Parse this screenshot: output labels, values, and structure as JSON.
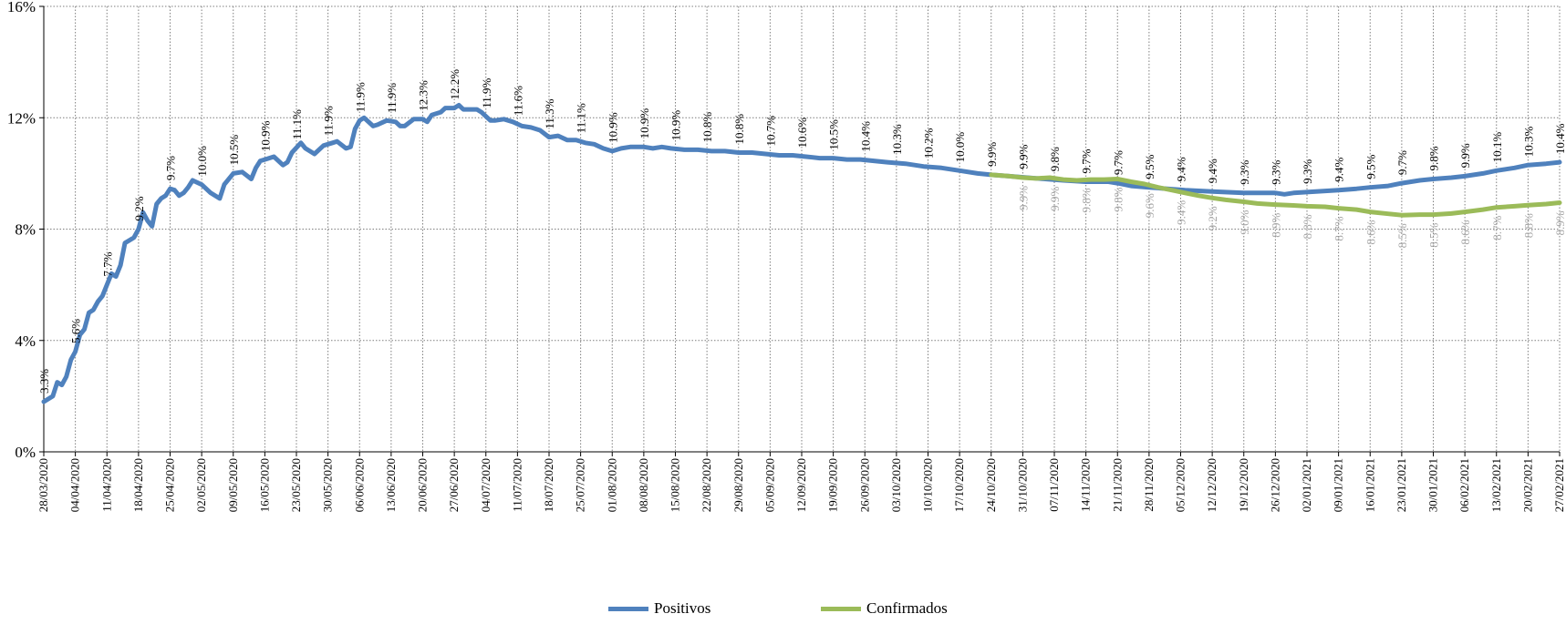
{
  "chart_data": {
    "type": "line",
    "title": "",
    "xlabel": "",
    "ylabel": "",
    "ylim": [
      0,
      16
    ],
    "y_ticks": [
      "0%",
      "4%",
      "8%",
      "12%",
      "16%"
    ],
    "grid": "dotted vertical and horizontal",
    "legend_position": "bottom-center",
    "x_start": "28/03/2020",
    "x_end": "27/02/2021",
    "x_tick_labels": [
      "28/03/2020",
      "04/04/2020",
      "11/04/2020",
      "18/04/2020",
      "25/04/2020",
      "02/05/2020",
      "09/05/2020",
      "16/05/2020",
      "23/05/2020",
      "30/05/2020",
      "06/06/2020",
      "13/06/2020",
      "20/06/2020",
      "27/06/2020",
      "04/07/2020",
      "11/07/2020",
      "18/07/2020",
      "25/07/2020",
      "01/08/2020",
      "08/08/2020",
      "15/08/2020",
      "22/08/2020",
      "29/08/2020",
      "05/09/2020",
      "12/09/2020",
      "19/09/2020",
      "26/09/2020",
      "03/10/2020",
      "10/10/2020",
      "17/10/2020",
      "24/10/2020",
      "31/10/2020",
      "07/11/2020",
      "14/11/2020",
      "21/11/2020",
      "28/11/2020",
      "05/12/2020",
      "12/12/2020",
      "19/12/2020",
      "26/12/2020",
      "02/01/2021",
      "09/01/2021",
      "16/01/2021",
      "23/01/2021",
      "30/01/2021",
      "06/02/2021",
      "13/02/2021",
      "20/02/2021",
      "27/02/2021"
    ],
    "series": [
      {
        "name": "Positivos",
        "color": "#4f81bd",
        "points": [
          [
            "28/03/2020",
            1.8
          ],
          [
            "30/03/2020",
            2.0
          ],
          [
            "31/03/2020",
            2.5
          ],
          [
            "01/04/2020",
            2.4
          ],
          [
            "02/04/2020",
            2.7
          ],
          [
            "03/04/2020",
            3.3
          ],
          [
            "04/04/2020",
            3.6
          ],
          [
            "05/04/2020",
            4.2
          ],
          [
            "06/04/2020",
            4.4
          ],
          [
            "07/04/2020",
            5.0
          ],
          [
            "08/04/2020",
            5.1
          ],
          [
            "09/04/2020",
            5.4
          ],
          [
            "10/04/2020",
            5.6
          ],
          [
            "11/04/2020",
            6.0
          ],
          [
            "12/04/2020",
            6.4
          ],
          [
            "13/04/2020",
            6.3
          ],
          [
            "14/04/2020",
            6.7
          ],
          [
            "15/04/2020",
            7.5
          ],
          [
            "16/04/2020",
            7.6
          ],
          [
            "17/04/2020",
            7.7
          ],
          [
            "18/04/2020",
            8.0
          ],
          [
            "19/04/2020",
            8.6
          ],
          [
            "20/04/2020",
            8.3
          ],
          [
            "21/04/2020",
            8.1
          ],
          [
            "22/04/2020",
            8.9
          ],
          [
            "23/04/2020",
            9.1
          ],
          [
            "24/04/2020",
            9.2
          ],
          [
            "25/04/2020",
            9.45
          ],
          [
            "26/04/2020",
            9.4
          ],
          [
            "27/04/2020",
            9.2
          ],
          [
            "28/04/2020",
            9.3
          ],
          [
            "29/04/2020",
            9.5
          ],
          [
            "30/04/2020",
            9.75
          ],
          [
            "02/05/2020",
            9.6
          ],
          [
            "04/05/2020",
            9.3
          ],
          [
            "06/05/2020",
            9.1
          ],
          [
            "07/05/2020",
            9.6
          ],
          [
            "09/05/2020",
            10.0
          ],
          [
            "11/05/2020",
            10.05
          ],
          [
            "13/05/2020",
            9.8
          ],
          [
            "14/05/2020",
            10.2
          ],
          [
            "15/05/2020",
            10.45
          ],
          [
            "16/05/2020",
            10.5
          ],
          [
            "18/05/2020",
            10.6
          ],
          [
            "20/05/2020",
            10.3
          ],
          [
            "21/05/2020",
            10.4
          ],
          [
            "22/05/2020",
            10.75
          ],
          [
            "24/05/2020",
            11.1
          ],
          [
            "25/05/2020",
            10.9
          ],
          [
            "27/05/2020",
            10.7
          ],
          [
            "29/05/2020",
            11.0
          ],
          [
            "31/05/2020",
            11.1
          ],
          [
            "01/06/2020",
            11.15
          ],
          [
            "03/06/2020",
            10.9
          ],
          [
            "04/06/2020",
            10.95
          ],
          [
            "05/06/2020",
            11.6
          ],
          [
            "06/06/2020",
            11.9
          ],
          [
            "07/06/2020",
            12.0
          ],
          [
            "09/06/2020",
            11.7
          ],
          [
            "10/06/2020",
            11.75
          ],
          [
            "12/06/2020",
            11.9
          ],
          [
            "14/06/2020",
            11.85
          ],
          [
            "15/06/2020",
            11.7
          ],
          [
            "16/06/2020",
            11.7
          ],
          [
            "18/06/2020",
            11.95
          ],
          [
            "20/06/2020",
            11.95
          ],
          [
            "21/06/2020",
            11.85
          ],
          [
            "22/06/2020",
            12.1
          ],
          [
            "24/06/2020",
            12.2
          ],
          [
            "25/06/2020",
            12.35
          ],
          [
            "27/06/2020",
            12.35
          ],
          [
            "28/06/2020",
            12.45
          ],
          [
            "29/06/2020",
            12.3
          ],
          [
            "02/07/2020",
            12.3
          ],
          [
            "03/07/2020",
            12.2
          ],
          [
            "05/07/2020",
            11.9
          ],
          [
            "06/07/2020",
            11.9
          ],
          [
            "08/07/2020",
            11.95
          ],
          [
            "10/07/2020",
            11.85
          ],
          [
            "12/07/2020",
            11.7
          ],
          [
            "14/07/2020",
            11.65
          ],
          [
            "16/07/2020",
            11.55
          ],
          [
            "18/07/2020",
            11.3
          ],
          [
            "20/07/2020",
            11.35
          ],
          [
            "22/07/2020",
            11.2
          ],
          [
            "24/07/2020",
            11.2
          ],
          [
            "26/07/2020",
            11.1
          ],
          [
            "28/07/2020",
            11.05
          ],
          [
            "30/07/2020",
            10.9
          ],
          [
            "01/08/2020",
            10.8
          ],
          [
            "03/08/2020",
            10.9
          ],
          [
            "05/08/2020",
            10.95
          ],
          [
            "08/08/2020",
            10.95
          ],
          [
            "10/08/2020",
            10.9
          ],
          [
            "12/08/2020",
            10.95
          ],
          [
            "14/08/2020",
            10.9
          ],
          [
            "17/08/2020",
            10.85
          ],
          [
            "20/08/2020",
            10.85
          ],
          [
            "23/08/2020",
            10.8
          ],
          [
            "26/08/2020",
            10.8
          ],
          [
            "29/08/2020",
            10.75
          ],
          [
            "01/09/2020",
            10.75
          ],
          [
            "04/09/2020",
            10.7
          ],
          [
            "07/09/2020",
            10.65
          ],
          [
            "10/09/2020",
            10.65
          ],
          [
            "13/09/2020",
            10.6
          ],
          [
            "16/09/2020",
            10.55
          ],
          [
            "19/09/2020",
            10.55
          ],
          [
            "22/09/2020",
            10.5
          ],
          [
            "25/09/2020",
            10.5
          ],
          [
            "28/09/2020",
            10.45
          ],
          [
            "01/10/2020",
            10.4
          ],
          [
            "05/10/2020",
            10.35
          ],
          [
            "09/10/2020",
            10.25
          ],
          [
            "13/10/2020",
            10.2
          ],
          [
            "17/10/2020",
            10.1
          ],
          [
            "21/10/2020",
            10.0
          ],
          [
            "24/10/2020",
            9.95
          ],
          [
            "28/10/2020",
            9.9
          ],
          [
            "01/11/2020",
            9.85
          ],
          [
            "05/11/2020",
            9.8
          ],
          [
            "09/11/2020",
            9.75
          ],
          [
            "14/11/2020",
            9.7
          ],
          [
            "19/11/2020",
            9.7
          ],
          [
            "21/11/2020",
            9.65
          ],
          [
            "24/11/2020",
            9.55
          ],
          [
            "28/11/2020",
            9.5
          ],
          [
            "02/12/2020",
            9.45
          ],
          [
            "06/12/2020",
            9.4
          ],
          [
            "12/12/2020",
            9.35
          ],
          [
            "19/12/2020",
            9.3
          ],
          [
            "26/12/2020",
            9.3
          ],
          [
            "28/12/2020",
            9.25
          ],
          [
            "30/12/2020",
            9.3
          ],
          [
            "04/01/2021",
            9.35
          ],
          [
            "09/01/2021",
            9.4
          ],
          [
            "13/01/2021",
            9.45
          ],
          [
            "16/01/2021",
            9.5
          ],
          [
            "20/01/2021",
            9.55
          ],
          [
            "23/01/2021",
            9.65
          ],
          [
            "27/01/2021",
            9.75
          ],
          [
            "30/01/2021",
            9.8
          ],
          [
            "03/02/2021",
            9.85
          ],
          [
            "06/02/2021",
            9.9
          ],
          [
            "10/02/2021",
            10.0
          ],
          [
            "13/02/2021",
            10.1
          ],
          [
            "17/02/2021",
            10.2
          ],
          [
            "20/02/2021",
            10.3
          ],
          [
            "24/02/2021",
            10.35
          ],
          [
            "27/02/2021",
            10.4
          ]
        ],
        "labels": [
          [
            "28/03/2020",
            "3.3%"
          ],
          [
            "04/04/2020",
            "5.6%"
          ],
          [
            "11/04/2020",
            "7.7%"
          ],
          [
            "18/04/2020",
            "9.2%"
          ],
          [
            "25/04/2020",
            "9.7%"
          ],
          [
            "02/05/2020",
            "10.0%"
          ],
          [
            "09/05/2020",
            "10.5%"
          ],
          [
            "16/05/2020",
            "10.9%"
          ],
          [
            "23/05/2020",
            "11.1%"
          ],
          [
            "30/05/2020",
            "11.9%"
          ],
          [
            "06/06/2020",
            "11.9%"
          ],
          [
            "13/06/2020",
            "11.9%"
          ],
          [
            "20/06/2020",
            "12.3%"
          ],
          [
            "27/06/2020",
            "12.2%"
          ],
          [
            "04/07/2020",
            "11.9%"
          ],
          [
            "11/07/2020",
            "11.6%"
          ],
          [
            "18/07/2020",
            "11.3%"
          ],
          [
            "25/07/2020",
            "11.1%"
          ],
          [
            "01/08/2020",
            "10.9%"
          ],
          [
            "08/08/2020",
            "10.9%"
          ],
          [
            "15/08/2020",
            "10.9%"
          ],
          [
            "22/08/2020",
            "10.8%"
          ],
          [
            "29/08/2020",
            "10.8%"
          ],
          [
            "05/09/2020",
            "10.7%"
          ],
          [
            "12/09/2020",
            "10.6%"
          ],
          [
            "19/09/2020",
            "10.5%"
          ],
          [
            "26/09/2020",
            "10.4%"
          ],
          [
            "03/10/2020",
            "10.3%"
          ],
          [
            "10/10/2020",
            "10.2%"
          ],
          [
            "17/10/2020",
            "10.0%"
          ],
          [
            "24/10/2020",
            "9.9%"
          ],
          [
            "31/10/2020",
            "9.9%"
          ],
          [
            "07/11/2020",
            "9.8%"
          ],
          [
            "14/11/2020",
            "9.7%"
          ],
          [
            "21/11/2020",
            "9.7%"
          ],
          [
            "28/11/2020",
            "9.5%"
          ],
          [
            "05/12/2020",
            "9.4%"
          ],
          [
            "12/12/2020",
            "9.4%"
          ],
          [
            "19/12/2020",
            "9.3%"
          ],
          [
            "26/12/2020",
            "9.3%"
          ],
          [
            "02/01/2021",
            "9.3%"
          ],
          [
            "09/01/2021",
            "9.4%"
          ],
          [
            "16/01/2021",
            "9.5%"
          ],
          [
            "23/01/2021",
            "9.7%"
          ],
          [
            "30/01/2021",
            "9.8%"
          ],
          [
            "06/02/2021",
            "9.9%"
          ],
          [
            "13/02/2021",
            "10.1%"
          ],
          [
            "20/02/2021",
            "10.3%"
          ],
          [
            "27/02/2021",
            "10.4%"
          ]
        ]
      },
      {
        "name": "Confirmados",
        "color": "#9bbb59",
        "label_color": "#a6a6a6",
        "points": [
          [
            "24/10/2020",
            9.95
          ],
          [
            "28/10/2020",
            9.9
          ],
          [
            "31/10/2020",
            9.85
          ],
          [
            "03/11/2020",
            9.82
          ],
          [
            "06/11/2020",
            9.85
          ],
          [
            "09/11/2020",
            9.78
          ],
          [
            "12/11/2020",
            9.75
          ],
          [
            "15/11/2020",
            9.78
          ],
          [
            "18/11/2020",
            9.78
          ],
          [
            "21/11/2020",
            9.8
          ],
          [
            "24/11/2020",
            9.7
          ],
          [
            "27/11/2020",
            9.62
          ],
          [
            "30/11/2020",
            9.5
          ],
          [
            "03/12/2020",
            9.4
          ],
          [
            "06/12/2020",
            9.3
          ],
          [
            "09/12/2020",
            9.2
          ],
          [
            "12/12/2020",
            9.12
          ],
          [
            "15/12/2020",
            9.05
          ],
          [
            "19/12/2020",
            8.98
          ],
          [
            "22/12/2020",
            8.92
          ],
          [
            "26/12/2020",
            8.88
          ],
          [
            "30/12/2020",
            8.85
          ],
          [
            "02/01/2021",
            8.82
          ],
          [
            "06/01/2021",
            8.8
          ],
          [
            "09/01/2021",
            8.75
          ],
          [
            "13/01/2021",
            8.7
          ],
          [
            "16/01/2021",
            8.62
          ],
          [
            "20/01/2021",
            8.55
          ],
          [
            "23/01/2021",
            8.5
          ],
          [
            "27/01/2021",
            8.52
          ],
          [
            "30/01/2021",
            8.52
          ],
          [
            "03/02/2021",
            8.56
          ],
          [
            "06/02/2021",
            8.62
          ],
          [
            "10/02/2021",
            8.7
          ],
          [
            "13/02/2021",
            8.78
          ],
          [
            "17/02/2021",
            8.82
          ],
          [
            "20/02/2021",
            8.86
          ],
          [
            "24/02/2021",
            8.9
          ],
          [
            "27/02/2021",
            8.95
          ]
        ],
        "labels": [
          [
            "31/10/2020",
            "9.9%"
          ],
          [
            "07/11/2020",
            "9.9%"
          ],
          [
            "14/11/2020",
            "9.8%"
          ],
          [
            "21/11/2020",
            "9.8%"
          ],
          [
            "28/11/2020",
            "9.6%"
          ],
          [
            "05/12/2020",
            "9.4%"
          ],
          [
            "12/12/2020",
            "9.2%"
          ],
          [
            "19/12/2020",
            "9.0%"
          ],
          [
            "26/12/2020",
            "8.9%"
          ],
          [
            "02/01/2021",
            "8.8%"
          ],
          [
            "09/01/2021",
            "8.7%"
          ],
          [
            "16/01/2021",
            "8.6%"
          ],
          [
            "23/01/2021",
            "8.5%"
          ],
          [
            "30/01/2021",
            "8.5%"
          ],
          [
            "06/02/2021",
            "8.6%"
          ],
          [
            "13/02/2021",
            "8.7%"
          ],
          [
            "20/02/2021",
            "8.8%"
          ],
          [
            "27/02/2021",
            "8.9%"
          ]
        ]
      }
    ]
  }
}
